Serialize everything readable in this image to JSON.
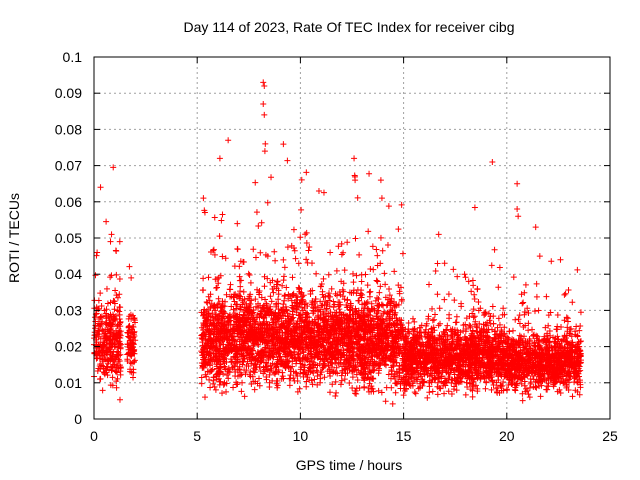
{
  "chart_data": {
    "type": "scatter",
    "title": "Day 114 of 2023, Rate Of TEC Index for receiver cibg",
    "xlabel": "GPS time / hours",
    "ylabel": "ROTI / TECUs",
    "xlim": [
      0,
      25
    ],
    "ylim": [
      0,
      0.1
    ],
    "x_ticks": [
      "0",
      "5",
      "10",
      "15",
      "20",
      "25"
    ],
    "y_ticks": [
      "0",
      "0.01",
      "0.02",
      "0.03",
      "0.04",
      "0.05",
      "0.06",
      "0.07",
      "0.08",
      "0.09",
      "0.1"
    ],
    "grid": true,
    "marker": "+",
    "series_color": "#ff0000",
    "series": [
      {
        "name": "ROTI",
        "segments": [
          {
            "x_start": 0.0,
            "x_end": 1.3,
            "center": 0.021,
            "spread": 0.01,
            "density": 260
          },
          {
            "x_start": 1.6,
            "x_end": 2.0,
            "center": 0.021,
            "spread": 0.008,
            "density": 220
          },
          {
            "x_start": 5.2,
            "x_end": 9.0,
            "center": 0.022,
            "spread": 0.011,
            "density": 320
          },
          {
            "x_start": 9.0,
            "x_end": 15.0,
            "center": 0.022,
            "spread": 0.011,
            "density": 320
          },
          {
            "x_start": 15.0,
            "x_end": 20.0,
            "center": 0.017,
            "spread": 0.008,
            "density": 300
          },
          {
            "x_start": 20.0,
            "x_end": 23.6,
            "center": 0.016,
            "spread": 0.007,
            "density": 280
          }
        ],
        "peaks": [
          {
            "x": 0.15,
            "y": 0.046
          },
          {
            "x": 0.8,
            "y": 0.049
          },
          {
            "x": 0.85,
            "y": 0.051
          },
          {
            "x": 1.25,
            "y": 0.049
          },
          {
            "x": 1.8,
            "y": 0.039
          },
          {
            "x": 5.3,
            "y": 0.061
          },
          {
            "x": 6.1,
            "y": 0.072
          },
          {
            "x": 6.5,
            "y": 0.077
          },
          {
            "x": 8.2,
            "y": 0.093
          },
          {
            "x": 8.25,
            "y": 0.092
          },
          {
            "x": 8.2,
            "y": 0.087
          },
          {
            "x": 8.25,
            "y": 0.084
          },
          {
            "x": 8.3,
            "y": 0.076
          },
          {
            "x": 8.28,
            "y": 0.074
          },
          {
            "x": 10.9,
            "y": 0.063
          },
          {
            "x": 12.6,
            "y": 0.072
          },
          {
            "x": 12.65,
            "y": 0.066
          },
          {
            "x": 13.9,
            "y": 0.066
          },
          {
            "x": 13.95,
            "y": 0.061
          },
          {
            "x": 16.7,
            "y": 0.051
          },
          {
            "x": 19.3,
            "y": 0.071
          },
          {
            "x": 20.5,
            "y": 0.065
          },
          {
            "x": 20.5,
            "y": 0.058
          },
          {
            "x": 20.55,
            "y": 0.056
          },
          {
            "x": 21.4,
            "y": 0.053
          },
          {
            "x": 21.6,
            "y": 0.045
          },
          {
            "x": 22.6,
            "y": 0.044
          }
        ]
      }
    ]
  }
}
